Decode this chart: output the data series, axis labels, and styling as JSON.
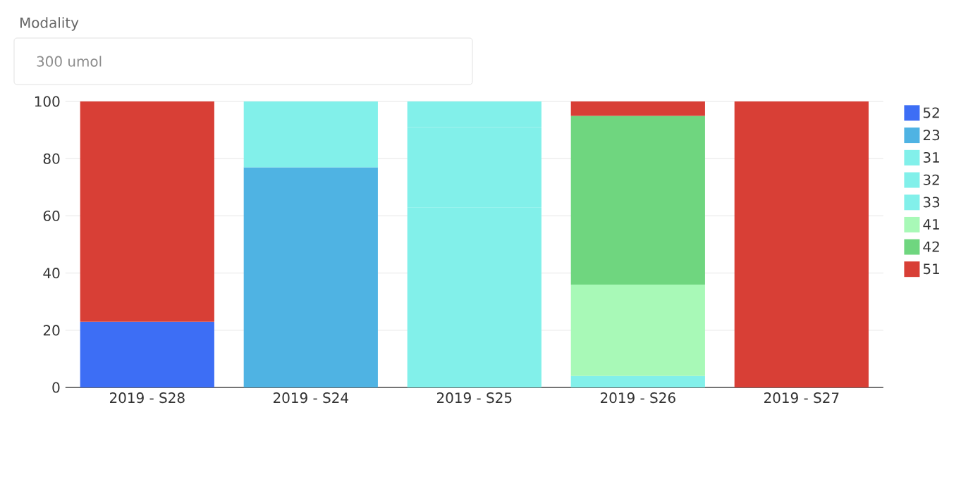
{
  "chart_data": {
    "type": "bar",
    "title": "Modality",
    "subtitle": "300 umol",
    "stacked": true,
    "categories": [
      "2019 - S28",
      "2019 - S24",
      "2019 - S25",
      "2019 - S26",
      "2019 - S27"
    ],
    "series": [
      {
        "name": "52",
        "color": "#3d6ef5",
        "values": [
          23,
          null,
          null,
          null,
          null
        ]
      },
      {
        "name": "23",
        "color": "#4fb3e3",
        "values": [
          null,
          77,
          null,
          null,
          null
        ]
      },
      {
        "name": "31",
        "color": "#82f0ea",
        "values": [
          null,
          23,
          63,
          4,
          null
        ]
      },
      {
        "name": "32",
        "color": "#82f0ea",
        "values": [
          null,
          null,
          28,
          null,
          null
        ]
      },
      {
        "name": "33",
        "color": "#82f0ea",
        "values": [
          null,
          null,
          9,
          null,
          null
        ]
      },
      {
        "name": "41",
        "color": "#a8f9b7",
        "values": [
          null,
          null,
          null,
          32,
          null
        ]
      },
      {
        "name": "42",
        "color": "#6fd67f",
        "values": [
          null,
          null,
          null,
          59,
          null
        ]
      },
      {
        "name": "51",
        "color": "#d83f36",
        "values": [
          77,
          null,
          null,
          5,
          100
        ]
      }
    ],
    "ylim": [
      0,
      100
    ],
    "yticks": [
      0,
      20,
      40,
      60,
      80,
      100
    ],
    "grid": "y",
    "legend": "top right"
  }
}
